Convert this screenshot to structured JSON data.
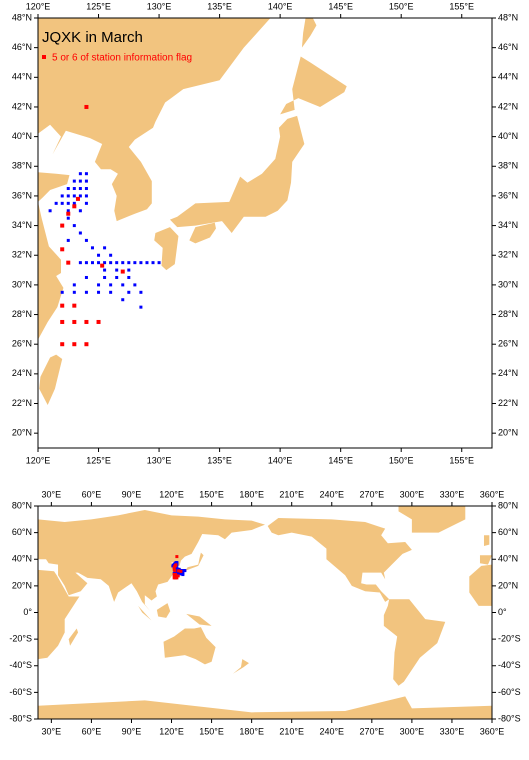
{
  "title": "JQXK in March",
  "legend": "5 or 6 of station information flag",
  "land_color": "#f2c47f",
  "maps": [
    {
      "xlim": [
        120,
        157.5
      ],
      "ylim": [
        19,
        48
      ],
      "xticks": [
        {
          "value": 120,
          "label": "120°E"
        },
        {
          "value": 125,
          "label": "125°E"
        },
        {
          "value": 130,
          "label": "130°E"
        },
        {
          "value": 135,
          "label": "135°E"
        },
        {
          "value": 140,
          "label": "140°E"
        },
        {
          "value": 145,
          "label": "145°E"
        },
        {
          "value": 150,
          "label": "150°E"
        },
        {
          "value": 155,
          "label": "155°E"
        }
      ],
      "yticks": [
        {
          "value": 20,
          "label": "20°N"
        },
        {
          "value": 22,
          "label": "22°N"
        },
        {
          "value": 24,
          "label": "24°N"
        },
        {
          "value": 26,
          "label": "26°N"
        },
        {
          "value": 28,
          "label": "28°N"
        },
        {
          "value": 30,
          "label": "30°N"
        },
        {
          "value": 32,
          "label": "32°N"
        },
        {
          "value": 34,
          "label": "34°N"
        },
        {
          "value": 36,
          "label": "36°N"
        },
        {
          "value": 38,
          "label": "38°N"
        },
        {
          "value": 40,
          "label": "40°N"
        },
        {
          "value": 42,
          "label": "42°N"
        },
        {
          "value": 44,
          "label": "44°N"
        },
        {
          "value": 46,
          "label": "46°N"
        },
        {
          "value": 48,
          "label": "48°N"
        }
      ]
    },
    {
      "xlim": [
        20,
        360
      ],
      "ylim": [
        -80,
        80
      ],
      "xticks": [
        {
          "value": 30,
          "label": "30°E"
        },
        {
          "value": 60,
          "label": "60°E"
        },
        {
          "value": 90,
          "label": "90°E"
        },
        {
          "value": 120,
          "label": "120°E"
        },
        {
          "value": 150,
          "label": "150°E"
        },
        {
          "value": 180,
          "label": "180°E"
        },
        {
          "value": 210,
          "label": "210°E"
        },
        {
          "value": 240,
          "label": "240°E"
        },
        {
          "value": 270,
          "label": "270°E"
        },
        {
          "value": 300,
          "label": "300°E"
        },
        {
          "value": 330,
          "label": "330°E"
        },
        {
          "value": 360,
          "label": "360°E"
        }
      ],
      "yticks": [
        {
          "value": -80,
          "label": "-80°S"
        },
        {
          "value": -60,
          "label": "-60°S"
        },
        {
          "value": -40,
          "label": "-40°S"
        },
        {
          "value": -20,
          "label": "-20°S"
        },
        {
          "value": 0,
          "label": "0°"
        },
        {
          "value": 20,
          "label": "20°N"
        },
        {
          "value": 40,
          "label": "40°N"
        },
        {
          "value": 60,
          "label": "60°N"
        },
        {
          "value": 80,
          "label": "80°N"
        }
      ]
    }
  ],
  "stations": {
    "blue": {
      "color": "#0000ff",
      "points": [
        [
          123.5,
          37.5
        ],
        [
          124,
          37.5
        ],
        [
          123,
          37
        ],
        [
          123.5,
          37
        ],
        [
          124,
          37
        ],
        [
          122.5,
          36.5
        ],
        [
          123,
          36.5
        ],
        [
          123.5,
          36.5
        ],
        [
          124,
          36.5
        ],
        [
          122,
          36
        ],
        [
          122.5,
          36
        ],
        [
          123,
          36
        ],
        [
          123.5,
          36
        ],
        [
          124,
          36
        ],
        [
          121.5,
          35.5
        ],
        [
          122,
          35.5
        ],
        [
          122.5,
          35.5
        ],
        [
          123,
          35.5
        ],
        [
          124,
          35.5
        ],
        [
          121,
          35
        ],
        [
          122.5,
          35
        ],
        [
          123.5,
          35
        ],
        [
          122.5,
          34.5
        ],
        [
          122,
          34
        ],
        [
          123,
          34
        ],
        [
          123.5,
          33.5
        ],
        [
          122.5,
          33
        ],
        [
          124,
          33
        ],
        [
          124.5,
          32.5
        ],
        [
          125.5,
          32.5
        ],
        [
          125,
          32
        ],
        [
          126,
          32
        ],
        [
          122.5,
          31.5
        ],
        [
          123.5,
          31.5
        ],
        [
          124,
          31.5
        ],
        [
          124.5,
          31.5
        ],
        [
          125,
          31.5
        ],
        [
          125.5,
          31.5
        ],
        [
          126,
          31.5
        ],
        [
          126.5,
          31.5
        ],
        [
          127,
          31.5
        ],
        [
          127.5,
          31.5
        ],
        [
          128,
          31.5
        ],
        [
          128.5,
          31.5
        ],
        [
          129,
          31.5
        ],
        [
          129.5,
          31.5
        ],
        [
          130,
          31.5
        ],
        [
          125.5,
          31
        ],
        [
          126.5,
          31
        ],
        [
          127.5,
          31
        ],
        [
          124,
          30.5
        ],
        [
          125.5,
          30.5
        ],
        [
          126.5,
          30.5
        ],
        [
          127.5,
          30.5
        ],
        [
          123,
          30
        ],
        [
          125,
          30
        ],
        [
          126,
          30
        ],
        [
          127,
          30
        ],
        [
          128,
          30
        ],
        [
          122,
          29.5
        ],
        [
          123,
          29.5
        ],
        [
          124,
          29.5
        ],
        [
          125,
          29.5
        ],
        [
          126,
          29.5
        ],
        [
          127.5,
          29.5
        ],
        [
          128.5,
          29.5
        ],
        [
          127,
          29
        ],
        [
          128.5,
          28.5
        ]
      ]
    },
    "red": {
      "color": "#ff0000",
      "points": [
        [
          124,
          42
        ],
        [
          123.3,
          35.8
        ],
        [
          123,
          35.3
        ],
        [
          122.5,
          34.8
        ],
        [
          122,
          34
        ],
        [
          122,
          32.4
        ],
        [
          122.5,
          31.5
        ],
        [
          125.3,
          31.3
        ],
        [
          127,
          30.9
        ],
        [
          122,
          28.6
        ],
        [
          123,
          28.6
        ],
        [
          122,
          27.5
        ],
        [
          123,
          27.5
        ],
        [
          124,
          27.5
        ],
        [
          125,
          27.5
        ],
        [
          122,
          26
        ],
        [
          123,
          26
        ],
        [
          124,
          26
        ]
      ]
    }
  }
}
